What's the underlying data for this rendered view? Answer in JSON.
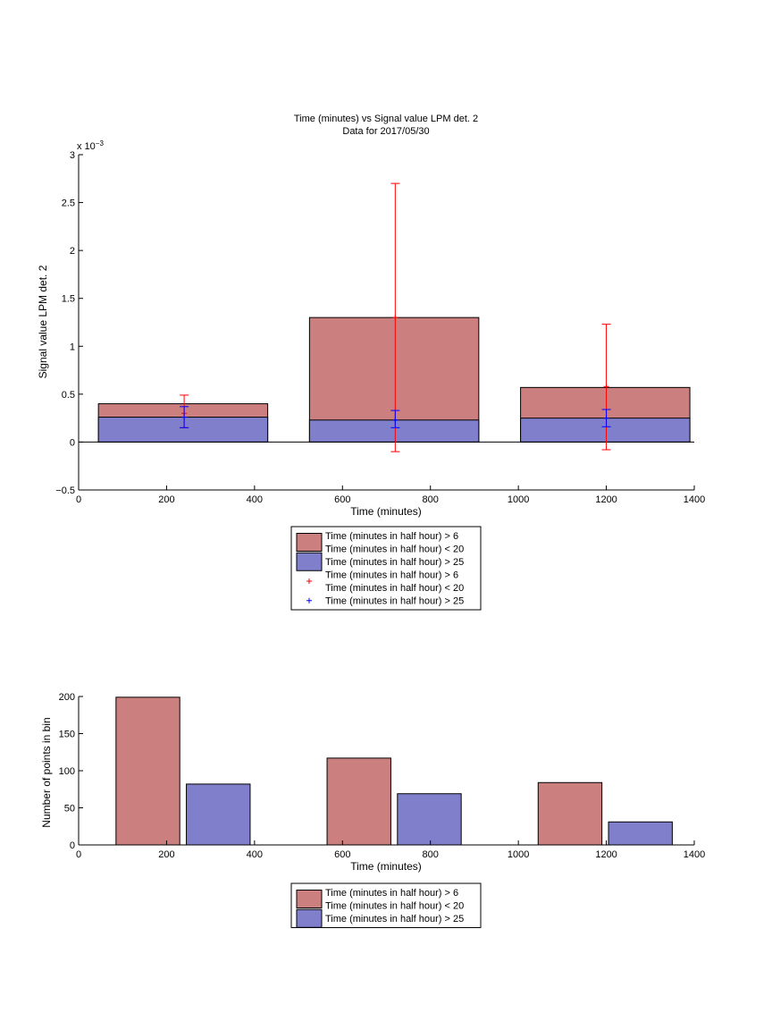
{
  "chart_data": [
    {
      "type": "bar",
      "title": "Time (minutes) vs Signal value LPM det. 2",
      "subtitle": "Data for 2017/05/30",
      "xlabel": "Time (minutes)",
      "ylabel": "Signal value LPM det. 2",
      "y_exponent_label": "x 10",
      "y_exponent_value": "−3",
      "xlim": [
        0,
        1400
      ],
      "ylim": [
        -0.5,
        3
      ],
      "y_scale_factor": 0.001,
      "x_ticks": [
        0,
        200,
        400,
        600,
        800,
        1000,
        1200,
        1400
      ],
      "x_tick_labels": [
        "0",
        "200",
        "400",
        "600",
        "800",
        "1000",
        "1200",
        "1400"
      ],
      "y_ticks": [
        -0.5,
        0,
        0.5,
        1,
        1.5,
        2,
        2.5,
        3
      ],
      "y_tick_labels": [
        "−0.5",
        "0",
        "0.5",
        "1",
        "1.5",
        "2",
        "2.5",
        "3"
      ],
      "grid": false,
      "legend_position": "below",
      "bin_edges": [
        [
          45,
          430
        ],
        [
          525,
          910
        ],
        [
          1005,
          1390
        ]
      ],
      "series": [
        {
          "name": "Time (minutes in half hour) > 6\nTime (minutes in half hour) < 20",
          "color": "#cc7f7f",
          "values": [
            0.4,
            1.3,
            0.57
          ]
        },
        {
          "name": "Time (minutes in half hour) > 25",
          "color": "#7f7fcc",
          "values": [
            0.26,
            0.23,
            0.25
          ]
        }
      ],
      "error_bars": [
        {
          "name": "Time (minutes in half hour) > 6\nTime (minutes in half hour) < 20",
          "color": "#ff0000",
          "marker": "+",
          "x": [
            240,
            720,
            1200
          ],
          "y": [
            0.3,
            1.3,
            0.58
          ],
          "lower": [
            0.15,
            -0.1,
            -0.08
          ],
          "upper": [
            0.49,
            2.7,
            1.23
          ]
        },
        {
          "name": "Time (minutes in half hour) > 25",
          "color": "#0000ff",
          "marker": "+",
          "x": [
            240,
            720,
            1200
          ],
          "y": [
            0.26,
            0.23,
            0.25
          ],
          "lower": [
            0.15,
            0.15,
            0.16
          ],
          "upper": [
            0.37,
            0.33,
            0.34
          ]
        }
      ],
      "legend": [
        {
          "kind": "patch",
          "color": "#cc7f7f",
          "lines": [
            "Time (minutes in half hour) > 6",
            "Time (minutes in half hour) < 20"
          ]
        },
        {
          "kind": "patch",
          "color": "#7f7fcc",
          "lines": [
            "Time (minutes in half hour) > 25"
          ]
        },
        {
          "kind": "marker",
          "color": "#ff0000",
          "lines": [
            "Time (minutes in half hour) > 6",
            "Time (minutes in half hour) < 20"
          ]
        },
        {
          "kind": "marker",
          "color": "#0000ff",
          "lines": [
            "Time (minutes in half hour) > 25"
          ]
        }
      ]
    },
    {
      "type": "bar",
      "title": "",
      "xlabel": "Time (minutes)",
      "ylabel": "Number of points in bin",
      "xlim": [
        0,
        1400
      ],
      "ylim": [
        0,
        200
      ],
      "x_ticks": [
        0,
        200,
        400,
        600,
        800,
        1000,
        1200,
        1400
      ],
      "x_tick_labels": [
        "0",
        "200",
        "400",
        "600",
        "800",
        "1000",
        "1200",
        "1400"
      ],
      "y_ticks": [
        0,
        50,
        100,
        150,
        200
      ],
      "y_tick_labels": [
        "0",
        "50",
        "100",
        "150",
        "200"
      ],
      "grid": false,
      "legend_position": "below",
      "series": [
        {
          "name": "Time (minutes in half hour) > 6\nTime (minutes in half hour) < 20",
          "color": "#cc7f7f",
          "x_ranges": [
            [
              85,
              230
            ],
            [
              565,
              710
            ],
            [
              1045,
              1190
            ]
          ],
          "values": [
            199,
            117,
            84
          ]
        },
        {
          "name": "Time (minutes in half hour) > 25",
          "color": "#7f7fcc",
          "x_ranges": [
            [
              245,
              390
            ],
            [
              725,
              870
            ],
            [
              1205,
              1350
            ]
          ],
          "values": [
            82,
            69,
            31
          ]
        }
      ],
      "legend": [
        {
          "kind": "patch",
          "color": "#cc7f7f",
          "lines": [
            "Time (minutes in half hour) > 6",
            "Time (minutes in half hour) < 20"
          ]
        },
        {
          "kind": "patch",
          "color": "#7f7fcc",
          "lines": [
            "Time (minutes in half hour) > 25"
          ]
        }
      ]
    }
  ]
}
